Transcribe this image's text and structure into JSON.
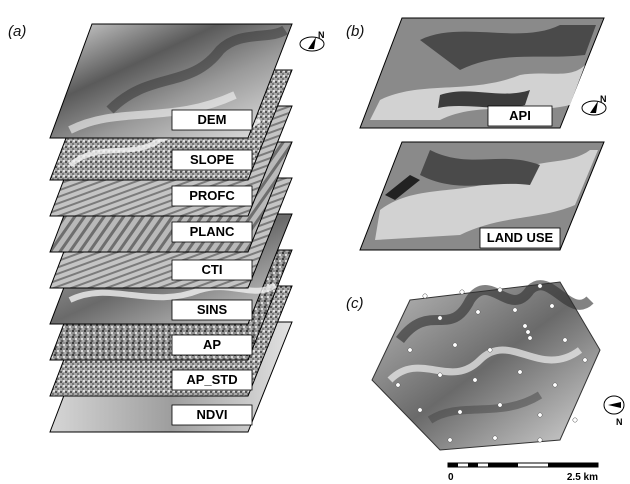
{
  "panels": {
    "a": "(a)",
    "b": "(b)",
    "c": "(c)"
  },
  "stack_a": [
    {
      "label": "DEM"
    },
    {
      "label": "SLOPE"
    },
    {
      "label": "PROFC"
    },
    {
      "label": "PLANC"
    },
    {
      "label": "CTI"
    },
    {
      "label": "SINS"
    },
    {
      "label": "AP"
    },
    {
      "label": "AP_STD"
    },
    {
      "label": "NDVI"
    }
  ],
  "stack_b": [
    {
      "label": "API"
    },
    {
      "label": "LAND USE"
    }
  ],
  "north": "N",
  "scale_bar": {
    "start": "0",
    "end": "2.5 km"
  },
  "colors": {
    "dark_gray": "#4a4a4a",
    "mid_gray": "#8a8a8a",
    "light_gray": "#cfcfcf"
  }
}
